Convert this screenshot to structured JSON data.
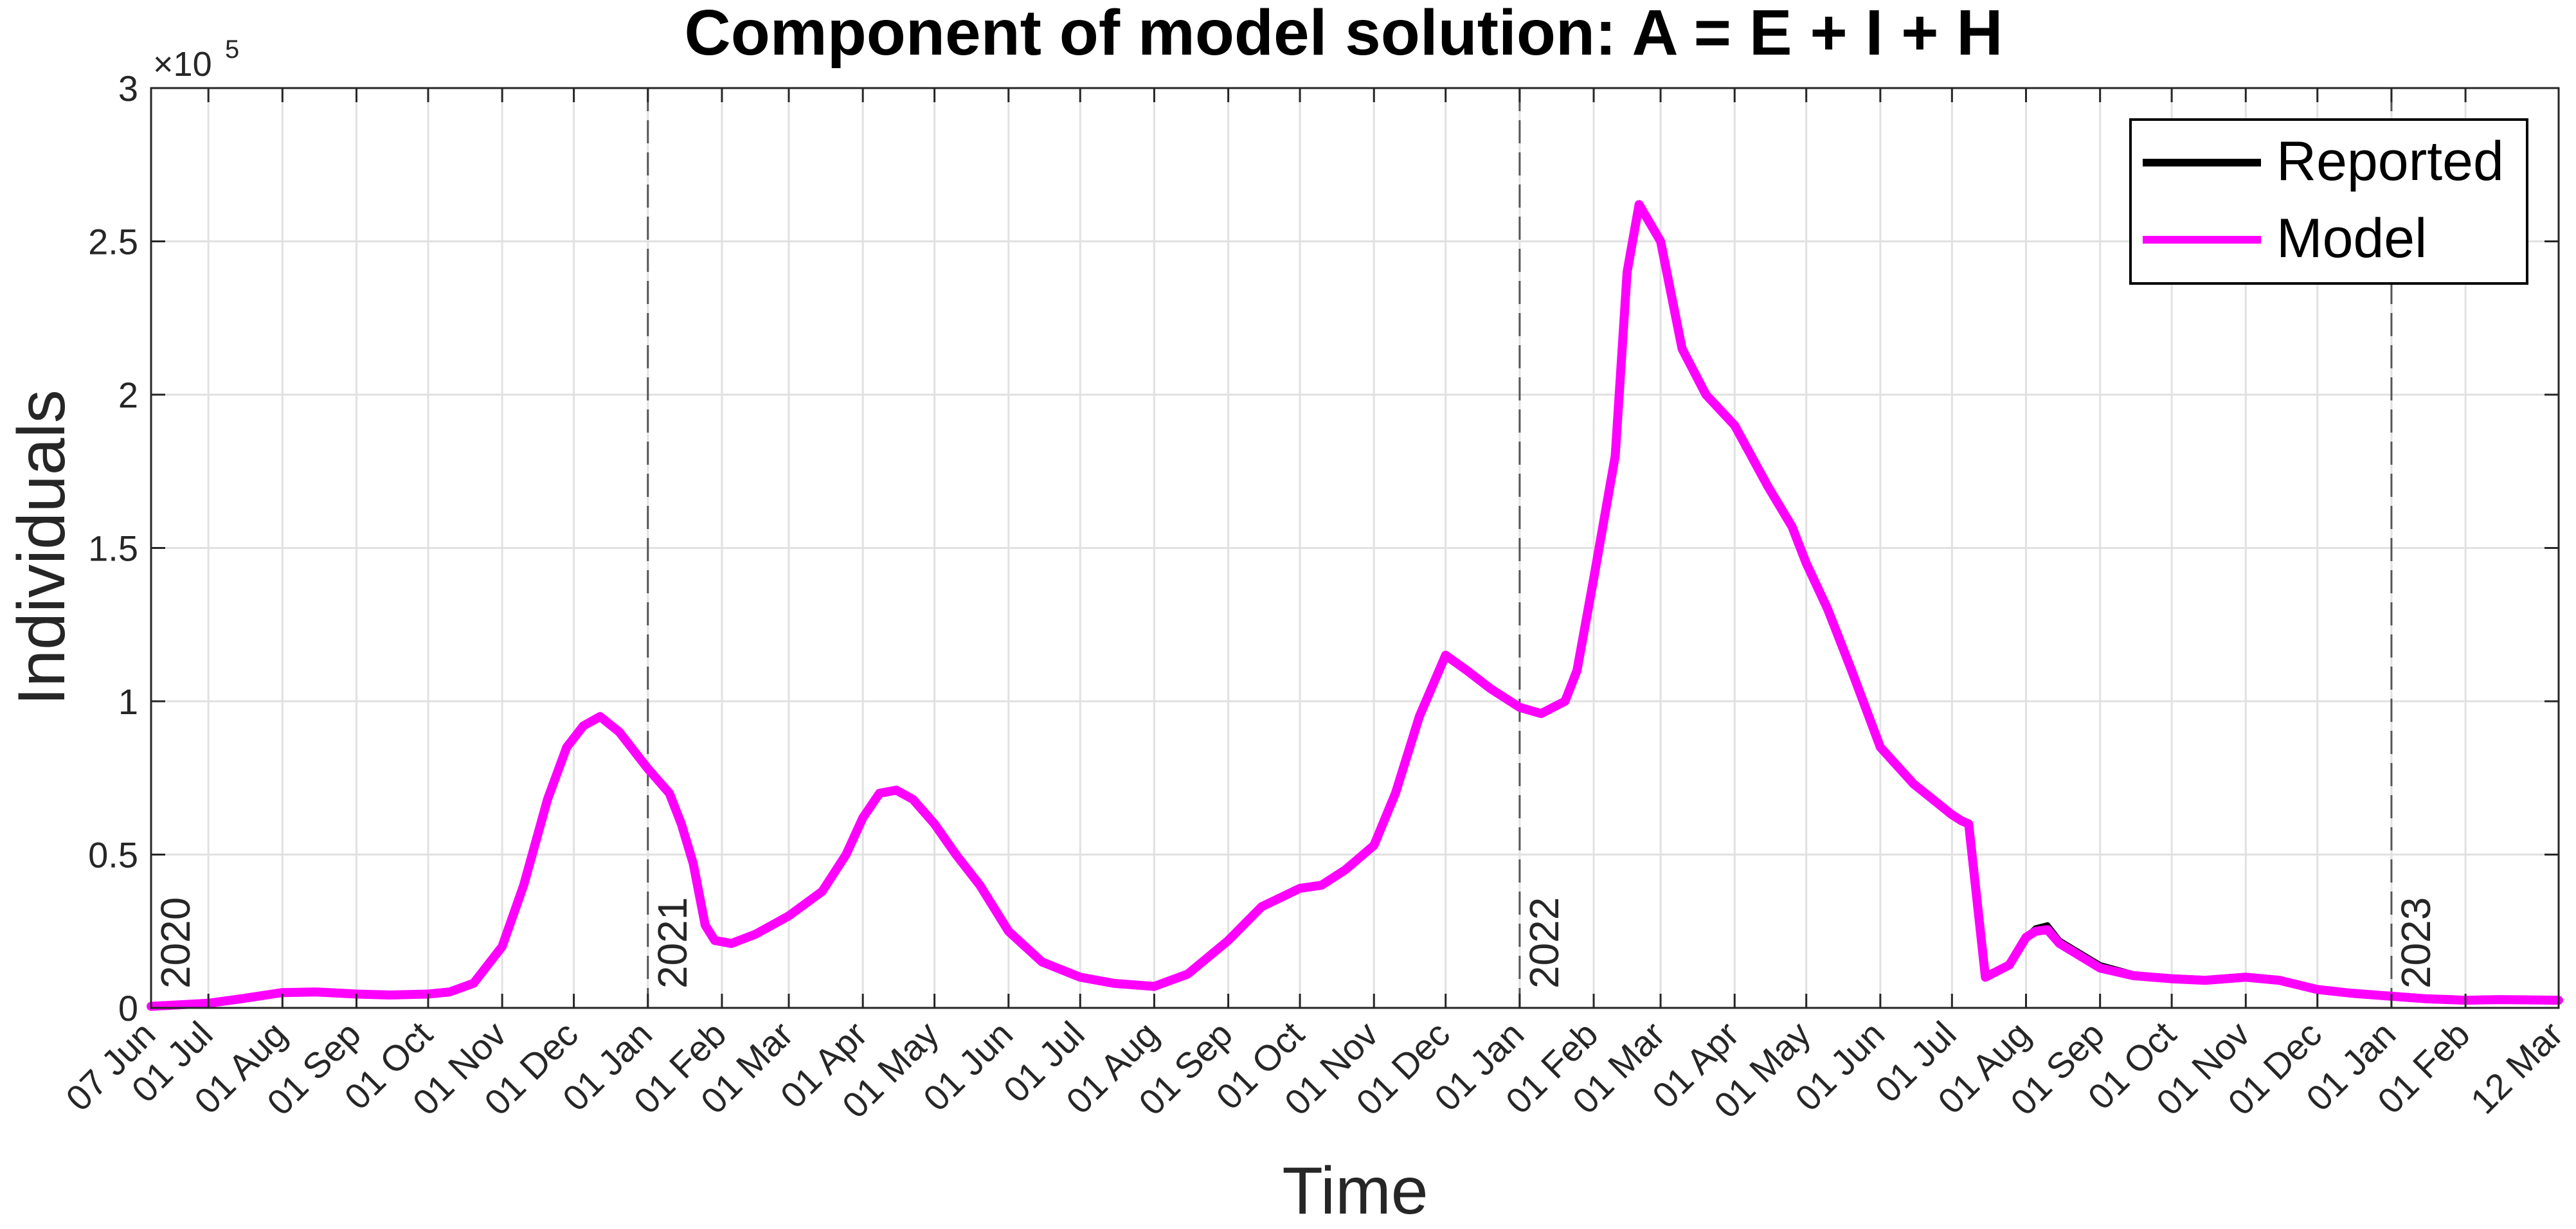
{
  "chart_data": {
    "type": "line",
    "title": "Component of model solution: A = E + I + H",
    "xlabel": "Time",
    "ylabel": "Individuals",
    "y_exponent_label": "×10",
    "y_exponent_power": "5",
    "xlim": [
      "2020-06-07",
      "2023-03-12"
    ],
    "ylim": [
      0,
      300000
    ],
    "grid": true,
    "legend_position": "top-right",
    "y_ticks": [
      0,
      50000,
      100000,
      150000,
      200000,
      250000,
      300000
    ],
    "y_tick_labels": [
      "0",
      "0.5",
      "1",
      "1.5",
      "2",
      "2.5",
      "3"
    ],
    "x_ticks": [
      {
        "date": "2020-06-07",
        "label": "07 Jun"
      },
      {
        "date": "2020-07-01",
        "label": "01 Jul"
      },
      {
        "date": "2020-08-01",
        "label": "01 Aug"
      },
      {
        "date": "2020-09-01",
        "label": "01 Sep"
      },
      {
        "date": "2020-10-01",
        "label": "01 Oct"
      },
      {
        "date": "2020-11-01",
        "label": "01 Nov"
      },
      {
        "date": "2020-12-01",
        "label": "01 Dec"
      },
      {
        "date": "2021-01-01",
        "label": "01 Jan"
      },
      {
        "date": "2021-02-01",
        "label": "01 Feb"
      },
      {
        "date": "2021-03-01",
        "label": "01 Mar"
      },
      {
        "date": "2021-04-01",
        "label": "01 Apr"
      },
      {
        "date": "2021-05-01",
        "label": "01 May"
      },
      {
        "date": "2021-06-01",
        "label": "01 Jun"
      },
      {
        "date": "2021-07-01",
        "label": "01 Jul"
      },
      {
        "date": "2021-08-01",
        "label": "01 Aug"
      },
      {
        "date": "2021-09-01",
        "label": "01 Sep"
      },
      {
        "date": "2021-10-01",
        "label": "01 Oct"
      },
      {
        "date": "2021-11-01",
        "label": "01 Nov"
      },
      {
        "date": "2021-12-01",
        "label": "01 Dec"
      },
      {
        "date": "2022-01-01",
        "label": "01 Jan"
      },
      {
        "date": "2022-02-01",
        "label": "01 Feb"
      },
      {
        "date": "2022-03-01",
        "label": "01 Mar"
      },
      {
        "date": "2022-04-01",
        "label": "01 Apr"
      },
      {
        "date": "2022-05-01",
        "label": "01 May"
      },
      {
        "date": "2022-06-01",
        "label": "01 Jun"
      },
      {
        "date": "2022-07-01",
        "label": "01 Jul"
      },
      {
        "date": "2022-08-01",
        "label": "01 Aug"
      },
      {
        "date": "2022-09-01",
        "label": "01 Sep"
      },
      {
        "date": "2022-10-01",
        "label": "01 Oct"
      },
      {
        "date": "2022-11-01",
        "label": "01 Nov"
      },
      {
        "date": "2022-12-01",
        "label": "01 Dec"
      },
      {
        "date": "2023-01-01",
        "label": "01 Jan"
      },
      {
        "date": "2023-02-01",
        "label": "01 Feb"
      },
      {
        "date": "2023-03-12",
        "label": "12 Mar"
      }
    ],
    "year_markers": [
      {
        "date": "2020-06-07",
        "label": "2020"
      },
      {
        "date": "2021-01-01",
        "label": "2021"
      },
      {
        "date": "2022-01-01",
        "label": "2022"
      },
      {
        "date": "2023-01-01",
        "label": "2023"
      }
    ],
    "series": [
      {
        "name": "Reported",
        "color": "#000000",
        "x": [
          "2020-06-07",
          "2020-07-01",
          "2020-07-15",
          "2020-08-01",
          "2020-08-15",
          "2020-09-01",
          "2020-09-15",
          "2020-10-01",
          "2020-10-10",
          "2020-10-20",
          "2020-11-01",
          "2020-11-10",
          "2020-11-20",
          "2020-11-28",
          "2020-12-05",
          "2020-12-12",
          "2020-12-20",
          "2021-01-01",
          "2021-01-10",
          "2021-01-15",
          "2021-01-20",
          "2021-01-25",
          "2021-01-29",
          "2021-02-05",
          "2021-02-15",
          "2021-03-01",
          "2021-03-15",
          "2021-03-25",
          "2021-04-01",
          "2021-04-08",
          "2021-04-15",
          "2021-04-22",
          "2021-05-01",
          "2021-05-10",
          "2021-05-20",
          "2021-06-01",
          "2021-06-15",
          "2021-07-01",
          "2021-07-15",
          "2021-08-01",
          "2021-08-15",
          "2021-09-01",
          "2021-09-15",
          "2021-10-01",
          "2021-10-10",
          "2021-10-20",
          "2021-11-01",
          "2021-11-10",
          "2021-11-20",
          "2021-12-01",
          "2021-12-10",
          "2021-12-20",
          "2022-01-01",
          "2022-01-10",
          "2022-01-20",
          "2022-01-25",
          "2022-02-01",
          "2022-02-10",
          "2022-02-15",
          "2022-02-20",
          "2022-03-01",
          "2022-03-10",
          "2022-03-20",
          "2022-04-01",
          "2022-04-15",
          "2022-04-25",
          "2022-05-01",
          "2022-05-10",
          "2022-05-20",
          "2022-06-01",
          "2022-06-15",
          "2022-07-01",
          "2022-07-05",
          "2022-07-08",
          "2022-07-15",
          "2022-07-25",
          "2022-08-01",
          "2022-08-05",
          "2022-08-10",
          "2022-08-15",
          "2022-09-01",
          "2022-09-15",
          "2022-10-01",
          "2022-10-15",
          "2022-11-01",
          "2022-11-15",
          "2022-12-01",
          "2022-12-15",
          "2023-01-01",
          "2023-01-15",
          "2023-02-01",
          "2023-02-15",
          "2023-03-12"
        ],
        "y": [
          500,
          1500,
          3000,
          5000,
          5200,
          4500,
          4200,
          4500,
          5200,
          8000,
          20000,
          40000,
          68000,
          85000,
          92000,
          95000,
          90000,
          78000,
          70000,
          60000,
          47000,
          27000,
          22000,
          21000,
          24000,
          30000,
          38000,
          50000,
          62000,
          70000,
          71000,
          68000,
          60000,
          50000,
          40000,
          25000,
          15000,
          10000,
          8000,
          7000,
          11000,
          22000,
          33000,
          39000,
          40000,
          45000,
          53000,
          70000,
          95000,
          115000,
          110000,
          104000,
          98000,
          96000,
          100000,
          110000,
          140000,
          180000,
          240000,
          262000,
          250000,
          215000,
          200000,
          190000,
          170000,
          157000,
          145000,
          130000,
          110000,
          85000,
          73000,
          63000,
          61000,
          60000,
          10000,
          14000,
          23000,
          26000,
          27000,
          22000,
          14000,
          11000,
          10000,
          9500,
          10500,
          9500,
          6500,
          5000,
          4000,
          3000,
          2500,
          2700,
          2500
        ]
      },
      {
        "name": "Model",
        "color": "#ff00ff",
        "x": [
          "2020-06-07",
          "2020-07-01",
          "2020-07-15",
          "2020-08-01",
          "2020-08-15",
          "2020-09-01",
          "2020-09-15",
          "2020-10-01",
          "2020-10-10",
          "2020-10-20",
          "2020-11-01",
          "2020-11-10",
          "2020-11-20",
          "2020-11-28",
          "2020-12-05",
          "2020-12-12",
          "2020-12-20",
          "2021-01-01",
          "2021-01-10",
          "2021-01-15",
          "2021-01-20",
          "2021-01-25",
          "2021-01-29",
          "2021-02-05",
          "2021-02-15",
          "2021-03-01",
          "2021-03-15",
          "2021-03-25",
          "2021-04-01",
          "2021-04-08",
          "2021-04-15",
          "2021-04-22",
          "2021-05-01",
          "2021-05-10",
          "2021-05-20",
          "2021-06-01",
          "2021-06-15",
          "2021-07-01",
          "2021-07-15",
          "2021-08-01",
          "2021-08-15",
          "2021-09-01",
          "2021-09-15",
          "2021-10-01",
          "2021-10-10",
          "2021-10-20",
          "2021-11-01",
          "2021-11-10",
          "2021-11-20",
          "2021-12-01",
          "2021-12-10",
          "2021-12-20",
          "2022-01-01",
          "2022-01-10",
          "2022-01-20",
          "2022-01-25",
          "2022-02-01",
          "2022-02-10",
          "2022-02-15",
          "2022-02-20",
          "2022-03-01",
          "2022-03-10",
          "2022-03-20",
          "2022-04-01",
          "2022-04-15",
          "2022-04-25",
          "2022-05-01",
          "2022-05-10",
          "2022-05-20",
          "2022-06-01",
          "2022-06-15",
          "2022-07-01",
          "2022-07-05",
          "2022-07-08",
          "2022-07-15",
          "2022-07-25",
          "2022-08-01",
          "2022-08-05",
          "2022-08-10",
          "2022-08-15",
          "2022-09-01",
          "2022-09-15",
          "2022-10-01",
          "2022-10-15",
          "2022-11-01",
          "2022-11-15",
          "2022-12-01",
          "2022-12-15",
          "2023-01-01",
          "2023-01-15",
          "2023-02-01",
          "2023-02-15",
          "2023-03-12"
        ],
        "y": [
          500,
          1500,
          3000,
          5000,
          5200,
          4500,
          4200,
          4500,
          5200,
          8000,
          20000,
          40000,
          68000,
          85000,
          92000,
          95000,
          90000,
          78000,
          70000,
          60000,
          47000,
          27000,
          22000,
          21000,
          24000,
          30000,
          38000,
          50000,
          62000,
          70000,
          71000,
          68000,
          60000,
          50000,
          40000,
          25000,
          15000,
          10000,
          8000,
          7000,
          11000,
          22000,
          33000,
          39000,
          40000,
          45000,
          53000,
          70000,
          95000,
          115000,
          110000,
          104000,
          98000,
          96000,
          100000,
          110000,
          140000,
          180000,
          240000,
          262000,
          250000,
          215000,
          200000,
          190000,
          170000,
          157000,
          145000,
          130000,
          110000,
          85000,
          73000,
          63000,
          61000,
          60000,
          10000,
          14000,
          23000,
          25000,
          25500,
          21000,
          13000,
          10500,
          9500,
          9000,
          10000,
          9000,
          6000,
          4800,
          3800,
          3000,
          2500,
          2700,
          2500
        ]
      }
    ]
  }
}
